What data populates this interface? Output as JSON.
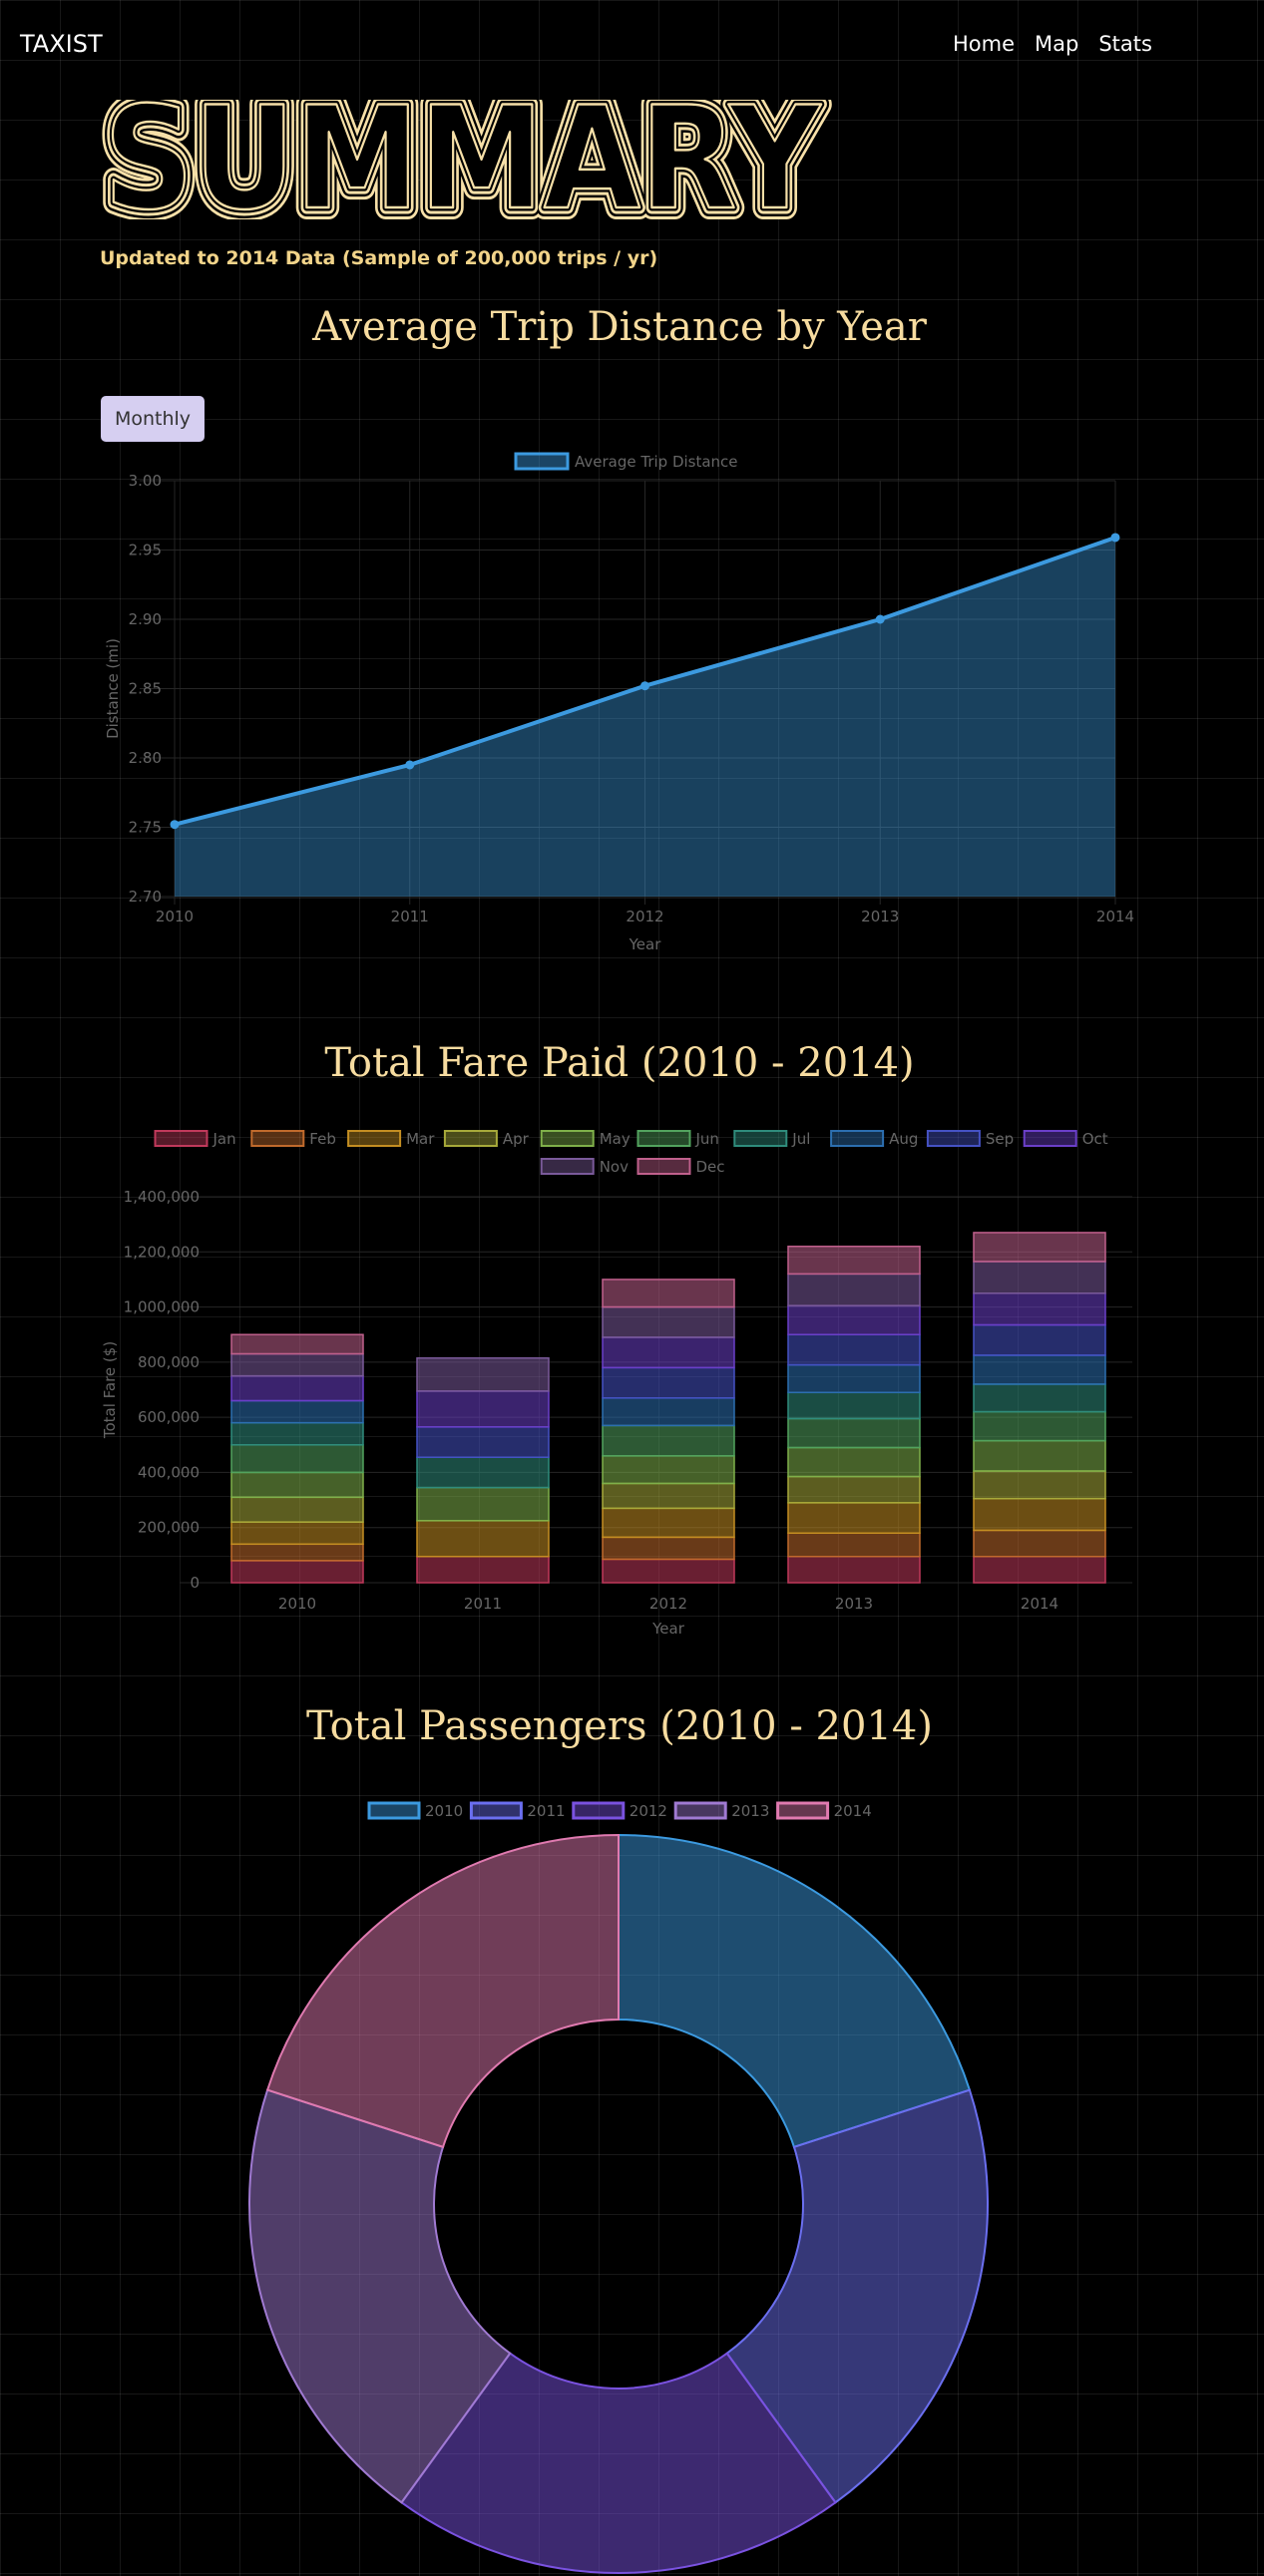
{
  "header": {
    "brand": "TAXIST",
    "nav": [
      {
        "label": "Home"
      },
      {
        "label": "Map"
      },
      {
        "label": "Stats"
      }
    ]
  },
  "hero": {
    "title": "SUMMARY",
    "subtitle": "Updated to 2014 Data (Sample of 200,000 trips / yr)"
  },
  "distance_section": {
    "title": "Average Trip Distance by Year",
    "toggle_label": "Monthly"
  },
  "fare_section": {
    "title": "Total Fare Paid (2010 - 2014)"
  },
  "passengers_section": {
    "title": "Total Passengers (2010 - 2014)"
  },
  "colors": {
    "accent_text": "#f7dca0",
    "line": "#3c9ae0",
    "grid": "#222222"
  },
  "chart_data": [
    {
      "type": "line",
      "x": [
        "2010",
        "2011",
        "2012",
        "2013",
        "2014"
      ],
      "series": [
        {
          "name": "Average Trip Distance",
          "values": [
            2.752,
            2.795,
            2.852,
            2.9,
            2.959
          ],
          "color": "#3c9ae0"
        }
      ],
      "xlabel": "Year",
      "ylabel": "Distance (mi)",
      "ylim": [
        2.7,
        3.0
      ],
      "yticks": [
        "3.00",
        "2.95",
        "2.90",
        "2.85",
        "2.80",
        "2.75",
        "2.70"
      ],
      "legend": "top-center",
      "fill": true
    },
    {
      "type": "bar",
      "stacked": true,
      "categories": [
        "2010",
        "2011",
        "2012",
        "2013",
        "2014"
      ],
      "series": [
        {
          "name": "Jan",
          "color": "#c0395b",
          "values": [
            80000,
            95000,
            85000,
            95000,
            95000
          ]
        },
        {
          "name": "Feb",
          "color": "#c06a2c",
          "values": [
            60000,
            0,
            80000,
            85000,
            95000
          ]
        },
        {
          "name": "Mar",
          "color": "#c48e22",
          "values": [
            80000,
            130000,
            105000,
            110000,
            115000
          ]
        },
        {
          "name": "Apr",
          "color": "#a7a93a",
          "values": [
            90000,
            0,
            90000,
            95000,
            100000
          ]
        },
        {
          "name": "May",
          "color": "#7fb04a",
          "values": [
            90000,
            120000,
            100000,
            105000,
            110000
          ]
        },
        {
          "name": "Jun",
          "color": "#52a35e",
          "values": [
            100000,
            0,
            110000,
            105000,
            105000
          ]
        },
        {
          "name": "Jul",
          "color": "#2f8c7c",
          "values": [
            80000,
            110000,
            0,
            95000,
            100000
          ]
        },
        {
          "name": "Aug",
          "color": "#2c6fb0",
          "values": [
            80000,
            0,
            100000,
            100000,
            105000
          ]
        },
        {
          "name": "Sep",
          "color": "#4552c4",
          "values": [
            0,
            110000,
            110000,
            110000,
            110000
          ]
        },
        {
          "name": "Oct",
          "color": "#6b3fc9",
          "values": [
            90000,
            130000,
            110000,
            105000,
            115000
          ]
        },
        {
          "name": "Nov",
          "color": "#7a5a9a",
          "values": [
            80000,
            120000,
            110000,
            115000,
            115000
          ]
        },
        {
          "name": "Dec",
          "color": "#c0608c",
          "values": [
            70000,
            0,
            100000,
            100000,
            105000
          ]
        }
      ],
      "xlabel": "Year",
      "ylabel": "Total Fare ($)",
      "ylim": [
        0,
        1400000
      ],
      "yticks": [
        "1,400,000",
        "1,200,000",
        "1,000,000",
        "800,000",
        "600,000",
        "400,000",
        "200,000",
        "0"
      ],
      "legend": "top-center"
    },
    {
      "type": "pie",
      "doughnut": true,
      "labels": [
        "2010",
        "2011",
        "2012",
        "2013",
        "2014"
      ],
      "values": [
        1,
        1,
        1,
        1,
        1
      ],
      "colors": [
        "#3c9ae0",
        "#6b6ff0",
        "#7a52e0",
        "#a07ad2",
        "#e07ab0"
      ],
      "legend": "top-center"
    }
  ]
}
